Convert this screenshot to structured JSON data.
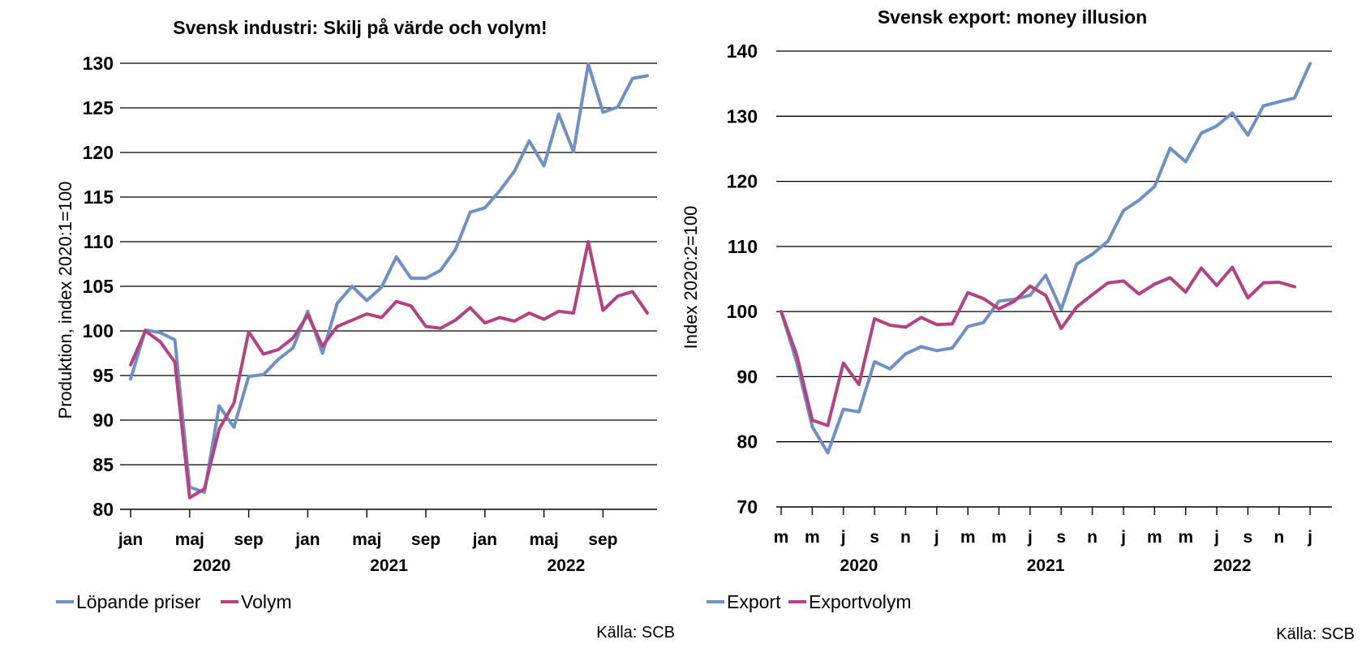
{
  "colors": {
    "blue": "#6f8fc7",
    "magenta": "#b5427f",
    "grid": "#000000"
  },
  "chart_data": [
    {
      "type": "line",
      "title": "Svensk industri: Skilj på värde och volym!",
      "ylabel": "Produktion, index 2020:1=100",
      "xlabel": "",
      "ylim": [
        80,
        130
      ],
      "yticks": [
        80,
        85,
        90,
        95,
        100,
        105,
        110,
        115,
        120,
        125,
        130
      ],
      "x_tick_labels": [
        "jan",
        "maj",
        "sep",
        "jan",
        "maj",
        "sep",
        "jan",
        "maj",
        "sep"
      ],
      "x_tick_months": [
        0,
        4,
        8,
        12,
        16,
        20,
        24,
        28,
        32
      ],
      "years": [
        {
          "label": "2020",
          "center_month": 5.5
        },
        {
          "label": "2021",
          "center_month": 17.5
        },
        {
          "label": "2022",
          "center_month": 29.5
        }
      ],
      "x_start": "2020-01",
      "grid": true,
      "legend_position": "bottom-left",
      "source": "Källa: SCB",
      "series": [
        {
          "name": "Löpande priser",
          "color": "#6f8fc7",
          "values": [
            94.6,
            100.1,
            99.8,
            99.0,
            82.5,
            81.9,
            91.6,
            89.2,
            94.9,
            95.1,
            96.8,
            98.1,
            102.2,
            97.5,
            103.1,
            105.0,
            103.4,
            104.9,
            108.3,
            105.9,
            105.9,
            106.8,
            109.1,
            113.3,
            113.8,
            115.7,
            117.9,
            121.3,
            118.5,
            124.3,
            120.1,
            129.9,
            124.5,
            125.1,
            128.3,
            128.6
          ]
        },
        {
          "name": "Volym",
          "color": "#b5427f",
          "values": [
            96.2,
            100.0,
            98.8,
            96.5,
            81.3,
            82.3,
            89.0,
            91.9,
            99.9,
            97.4,
            97.9,
            99.2,
            101.8,
            98.3,
            100.5,
            101.2,
            101.9,
            101.5,
            103.3,
            102.8,
            100.5,
            100.3,
            101.2,
            102.6,
            100.9,
            101.5,
            101.1,
            102.0,
            101.3,
            102.2,
            102.0,
            110.0,
            102.3,
            103.9,
            104.4,
            102.0
          ]
        }
      ]
    },
    {
      "type": "line",
      "title": "Svensk export: money illusion",
      "ylabel": "Index 2020:2=100",
      "xlabel": "",
      "ylim": [
        70,
        140
      ],
      "yticks": [
        70,
        80,
        90,
        100,
        110,
        120,
        130,
        140
      ],
      "x_tick_labels": [
        "m",
        "m",
        "j",
        "s",
        "n",
        "j",
        "m",
        "m",
        "j",
        "s",
        "n",
        "j",
        "m",
        "m",
        "j",
        "s",
        "n",
        "j"
      ],
      "x_tick_months": [
        0,
        2,
        4,
        6,
        8,
        10,
        12,
        14,
        16,
        18,
        20,
        22,
        24,
        26,
        28,
        30,
        32,
        34
      ],
      "years": [
        {
          "label": "2020",
          "center_month": 5
        },
        {
          "label": "2021",
          "center_month": 17
        },
        {
          "label": "2022",
          "center_month": 29
        }
      ],
      "x_start": "2020-02",
      "grid": true,
      "legend_position": "bottom-left",
      "source": "Källa: SCB",
      "series": [
        {
          "name": "Export",
          "color": "#6f8fc7",
          "values": [
            100.0,
            92.2,
            82.3,
            78.3,
            85.0,
            84.6,
            92.3,
            91.2,
            93.5,
            94.6,
            94.0,
            94.4,
            97.7,
            98.3,
            101.6,
            101.9,
            102.5,
            105.6,
            100.3,
            107.3,
            108.8,
            110.8,
            115.5,
            117.1,
            119.2,
            125.1,
            123.0,
            127.4,
            128.5,
            130.5,
            127.1,
            131.6,
            132.2,
            132.8,
            138.1
          ]
        },
        {
          "name": "Exportvolym",
          "color": "#b5427f",
          "values": [
            100.0,
            93.3,
            83.3,
            82.5,
            92.1,
            88.8,
            98.9,
            97.9,
            97.6,
            99.1,
            98.0,
            98.1,
            102.9,
            102.0,
            100.4,
            101.6,
            103.9,
            102.5,
            97.4,
            100.7,
            102.6,
            104.4,
            104.7,
            102.7,
            104.2,
            105.2,
            103.0,
            106.7,
            104.0,
            106.8,
            102.1,
            104.4,
            104.5,
            103.8
          ]
        }
      ]
    }
  ]
}
